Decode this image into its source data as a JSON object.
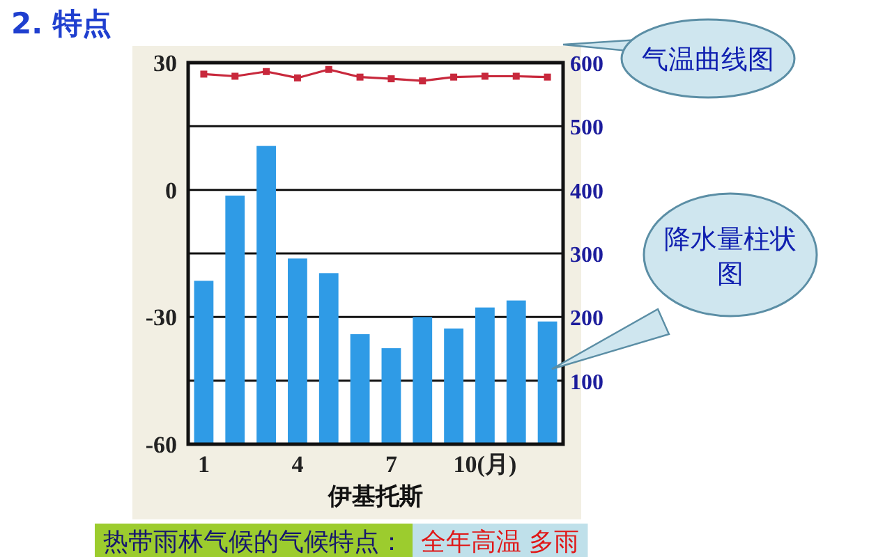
{
  "chart_data": {
    "type": "bar",
    "title": "2. 特点",
    "xlabel": "伊基托斯",
    "categories": [
      "1",
      null,
      null,
      "4",
      null,
      null,
      "7",
      null,
      null,
      "10(月)",
      null,
      null
    ],
    "ylim": [
      -60,
      30
    ],
    "yticks": [
      30,
      0,
      -30,
      -60
    ],
    "y2lim": [
      0,
      600
    ],
    "y2ticks": [
      100,
      200,
      300,
      400,
      500,
      600
    ],
    "grid": true,
    "marker": "square",
    "series": [
      {
        "axis": "y2",
        "color": "#2f9be6",
        "values": [
          257,
          391,
          469,
          292,
          269,
          173,
          151,
          200,
          182,
          215,
          226,
          193
        ]
      },
      {
        "type": "line",
        "axis": "y",
        "color": "#c8283c",
        "values": [
          27.3,
          26.8,
          27.9,
          26.4,
          28.4,
          26.6,
          26.2,
          25.7,
          26.6,
          26.8,
          26.8,
          26.6
        ]
      }
    ],
    "annotations": [
      "气温曲线图",
      "降水量柱状图",
      "热带雨林气候的气候特点：",
      "全年高温 多雨"
    ]
  }
}
